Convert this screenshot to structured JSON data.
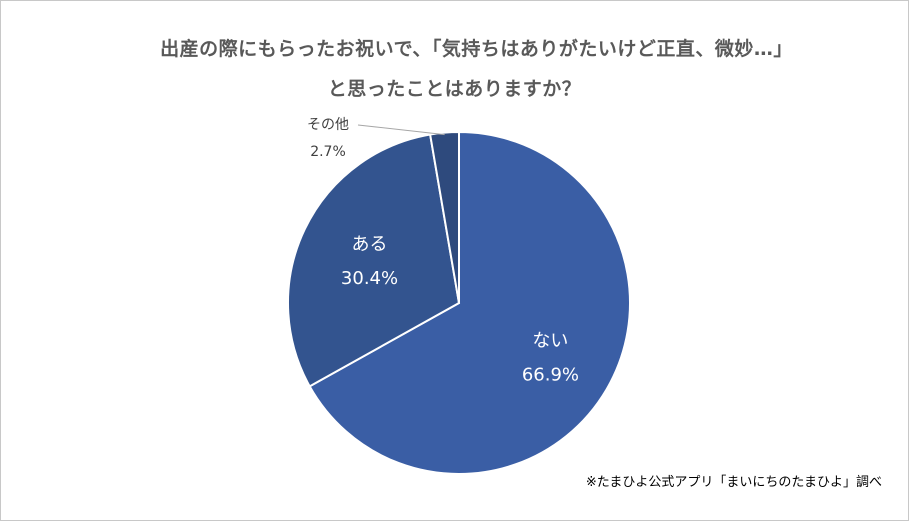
{
  "chart_data": {
    "type": "pie",
    "title_lines": [
      "出産の際にもらったお祝いで、「気持ちはありがたいけど正直、微妙…」",
      "と思ったことはありますか？"
    ],
    "slices": [
      {
        "label": "ない",
        "value": 66.9,
        "value_text": "66.9%",
        "color": "#3a5ea5"
      },
      {
        "label": "ある",
        "value": 30.4,
        "value_text": "30.4%",
        "color": "#33548f"
      },
      {
        "label": "その他",
        "value": 2.7,
        "value_text": "2.7%",
        "color": "#2e4a7d"
      }
    ],
    "start_angle_deg": 0,
    "direction": "clockwise",
    "legend": "none",
    "label_color_inside": "#ffffff",
    "label_color_outside": "#404040"
  },
  "source_note": "※たまひよ公式アプリ「まいにちのたまひよ」調べ"
}
